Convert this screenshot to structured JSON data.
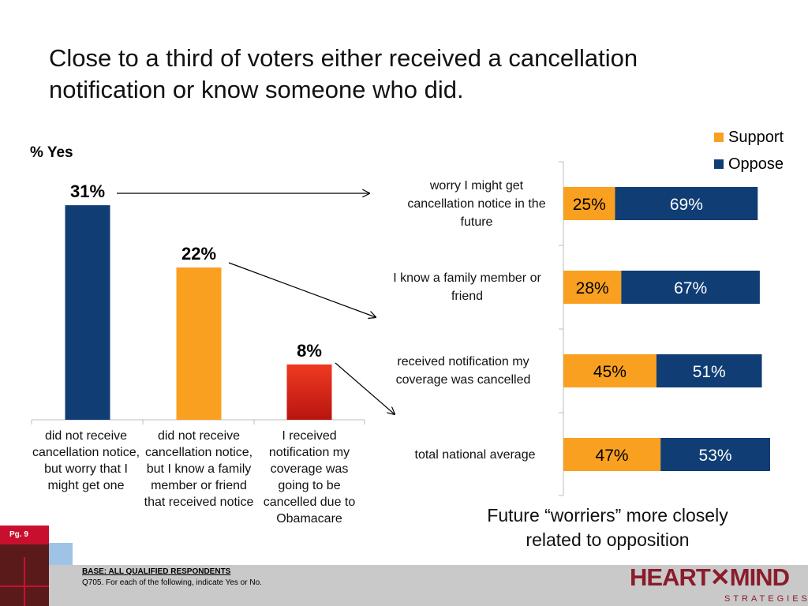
{
  "title": "Close to a third of voters either received a cancellation notification or know someone who did.",
  "chart_data": [
    {
      "type": "bar",
      "ylabel": "% Yes",
      "categories": [
        "did not receive cancellation notice, but worry that I might get one",
        "did not receive cancellation notice, but I know a family member or friend that received  notice",
        "I received notification my coverage was going to be cancelled due to Obamacare"
      ],
      "values": [
        31,
        22,
        8
      ],
      "data_labels": [
        "31%",
        "22%",
        "8%"
      ],
      "colors": [
        "#0f3d74",
        "#f9a020",
        "#e02a1a"
      ],
      "ylim": [
        0,
        35
      ],
      "grid": false
    },
    {
      "type": "bar",
      "orientation": "horizontal",
      "stacked": true,
      "categories": [
        "worry I might get cancellation notice in the future",
        "I know a family member or friend",
        "received notification my coverage was cancelled",
        "total national average"
      ],
      "series": [
        {
          "name": "Support",
          "color": "#f9a020",
          "values": [
            25,
            28,
            45,
            47
          ],
          "labels": [
            "25%",
            "28%",
            "45%",
            "47%"
          ]
        },
        {
          "name": "Oppose",
          "color": "#0f3d74",
          "values": [
            69,
            67,
            51,
            53
          ],
          "labels": [
            "69%",
            "67%",
            "51%",
            "53%"
          ]
        }
      ],
      "xlim": [
        0,
        100
      ],
      "legend": "top-right",
      "grid": false
    }
  ],
  "conclusion": "Future “worriers” more closely related to opposition",
  "footer": {
    "base": "BASE: ALL QUALIFIED RESPONDENTS",
    "question": "Q705.  For each of the following, indicate Yes or No."
  },
  "page_label": "Pg. 9",
  "logo": {
    "text": "HEART✕MIND",
    "sub": "STRATEGIES"
  }
}
